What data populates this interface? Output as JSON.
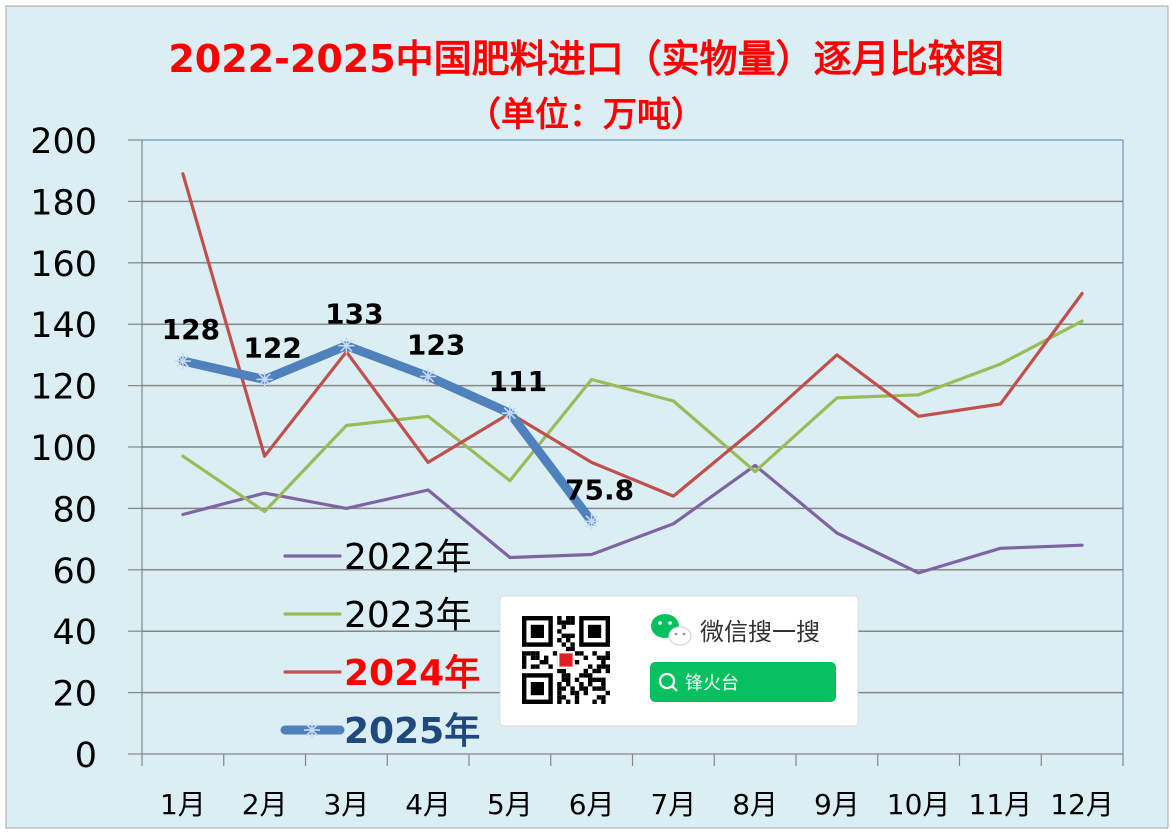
{
  "chart_data": {
    "type": "line",
    "title": "2022-2025中国肥料进口（实物量）逐月比较图",
    "subtitle": "（单位：万吨）",
    "categories": [
      "1月",
      "2月",
      "3月",
      "4月",
      "5月",
      "6月",
      "7月",
      "8月",
      "9月",
      "10月",
      "11月",
      "12月"
    ],
    "ylim": [
      0,
      200
    ],
    "yticks": [
      "0",
      "20",
      "40",
      "60",
      "80",
      "100",
      "120",
      "140",
      "160",
      "180",
      "200"
    ],
    "grid": true,
    "legend_position": "bottom-left",
    "series": [
      {
        "name": "2022年",
        "color": "#8064a2",
        "values": [
          78,
          85,
          80,
          86,
          64,
          65,
          75,
          94,
          72,
          59,
          67,
          68
        ]
      },
      {
        "name": "2023年",
        "color": "#9bbb59",
        "values": [
          97,
          79,
          107,
          110,
          89,
          122,
          115,
          92,
          116,
          117,
          127,
          141
        ]
      },
      {
        "name": "2024年",
        "color": "#c0504d",
        "legend_color": "#ff0000",
        "values": [
          189,
          97,
          131,
          95,
          111,
          95,
          84,
          106,
          130,
          110,
          114,
          150
        ]
      },
      {
        "name": "2025年",
        "color": "#4f81bd",
        "legend_color": "#1f497d",
        "emphasis": true,
        "values": [
          128,
          122,
          133,
          123,
          111,
          75.8,
          null,
          null,
          null,
          null,
          null,
          null
        ],
        "data_labels": [
          "128",
          "122",
          "133",
          "123",
          "111",
          "75.8"
        ]
      }
    ]
  },
  "watermark": {
    "search_text": "微信搜一搜",
    "account_name": "锋火台",
    "colors": {
      "wechat_green": "#07c160"
    }
  }
}
